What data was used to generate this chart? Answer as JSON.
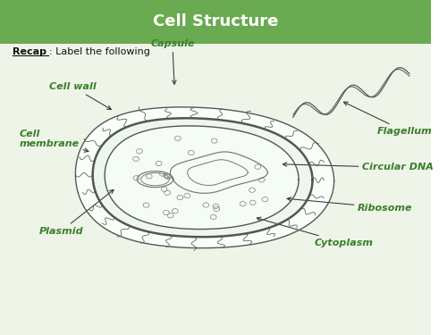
{
  "title": "Cell Structure",
  "title_bg": "#6aaa50",
  "title_color": "#ffffff",
  "subtitle_bold": "Recap",
  "subtitle_rest": ": Label the following",
  "bg_color": "#eef5e8",
  "label_color": "#3a7d2c",
  "cell_line_color": "#555555",
  "cell_fill_color": "#f0f5f0"
}
